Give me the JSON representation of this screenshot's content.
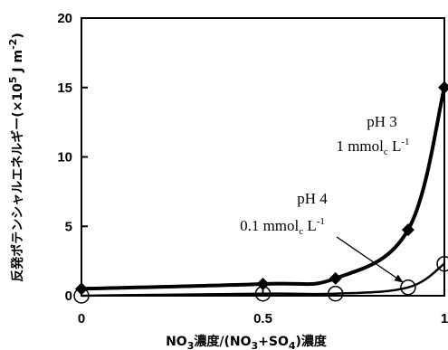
{
  "chart_data": {
    "type": "line",
    "xlabel": {
      "pre": "NO",
      "s1": "3",
      "mid1": "濃度/(NO",
      "s2": "3",
      "mid2": "+SO",
      "s3": "4",
      "post": ")濃度"
    },
    "ylabel": {
      "main": "反発ポテンシャルエネルギー(×10",
      "sup1": "5",
      "unit": " J m",
      "sup2": "-2",
      "close": ")"
    },
    "xlim": [
      0,
      1
    ],
    "ylim": [
      0,
      20
    ],
    "x_ticks": [
      {
        "v": 0,
        "label": "0"
      },
      {
        "v": 0.5,
        "label": "0.5"
      },
      {
        "v": 1,
        "label": "1"
      }
    ],
    "y_ticks": [
      {
        "v": 0,
        "label": "0"
      },
      {
        "v": 5,
        "label": "5"
      },
      {
        "v": 10,
        "label": "10"
      },
      {
        "v": 15,
        "label": "15"
      },
      {
        "v": 20,
        "label": "20"
      }
    ],
    "grid": false,
    "series": [
      {
        "marker": "diamond",
        "x": [
          0,
          0.5,
          0.7,
          0.9,
          1.0
        ],
        "y": [
          0.5,
          0.85,
          1.25,
          4.75,
          15.0
        ]
      },
      {
        "marker": "open-circle",
        "x": [
          0,
          0.5,
          0.7,
          0.9,
          1.0
        ],
        "y": [
          0.0,
          0.15,
          0.15,
          0.6,
          2.3
        ]
      }
    ],
    "annotations": {
      "ph3": {
        "title": "pH 3",
        "val": "1 mmol",
        "sub": "c",
        "unit": " L",
        "sup": "-1"
      },
      "ph4": {
        "title": "pH 4",
        "val": "0.1 mmol",
        "sub": "c",
        "unit": " L",
        "sup": "-1"
      }
    }
  }
}
